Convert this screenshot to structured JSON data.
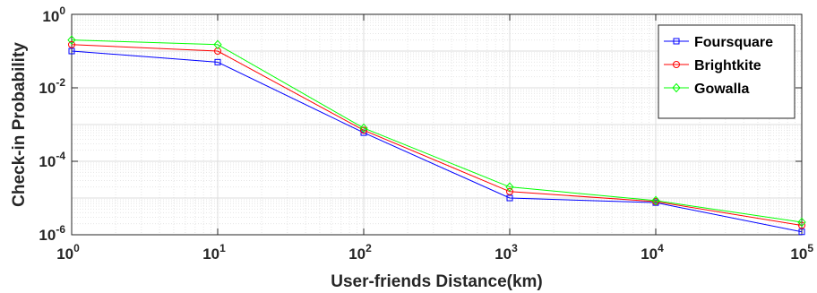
{
  "chart_data": {
    "type": "line",
    "title": "",
    "xlabel": "User-friends Distance(km)",
    "ylabel": "Check-in Probability",
    "xscale": "log",
    "yscale": "log",
    "xlim": [
      1,
      100000
    ],
    "ylim": [
      1e-06,
      1
    ],
    "grid": true,
    "legend_position": "top-right",
    "x": [
      1,
      10,
      100,
      1000,
      10000,
      100000
    ],
    "x_tick_labels": [
      {
        "base": "10",
        "exp": "0"
      },
      {
        "base": "10",
        "exp": "1"
      },
      {
        "base": "10",
        "exp": "2"
      },
      {
        "base": "10",
        "exp": "3"
      },
      {
        "base": "10",
        "exp": "4"
      },
      {
        "base": "10",
        "exp": "5"
      }
    ],
    "y_ticks": [
      1e-06,
      0.0001,
      0.01,
      1
    ],
    "y_tick_labels": [
      {
        "base": "10",
        "exp": "-6"
      },
      {
        "base": "10",
        "exp": "-4"
      },
      {
        "base": "10",
        "exp": "-2"
      },
      {
        "base": "10",
        "exp": "0"
      }
    ],
    "series": [
      {
        "name": "Foursquare",
        "color": "#0000ff",
        "marker": "square",
        "values": [
          0.1,
          0.05,
          0.0006,
          1e-05,
          7.5e-06,
          1.2e-06
        ]
      },
      {
        "name": "Brightkite",
        "color": "#ff0000",
        "marker": "circle",
        "values": [
          0.15,
          0.1,
          0.0007,
          1.5e-05,
          8e-06,
          1.8e-06
        ]
      },
      {
        "name": "Gowalla",
        "color": "#00ff00",
        "marker": "diamond",
        "values": [
          0.2,
          0.15,
          0.0008,
          2e-05,
          8.5e-06,
          2.2e-06
        ]
      }
    ]
  }
}
